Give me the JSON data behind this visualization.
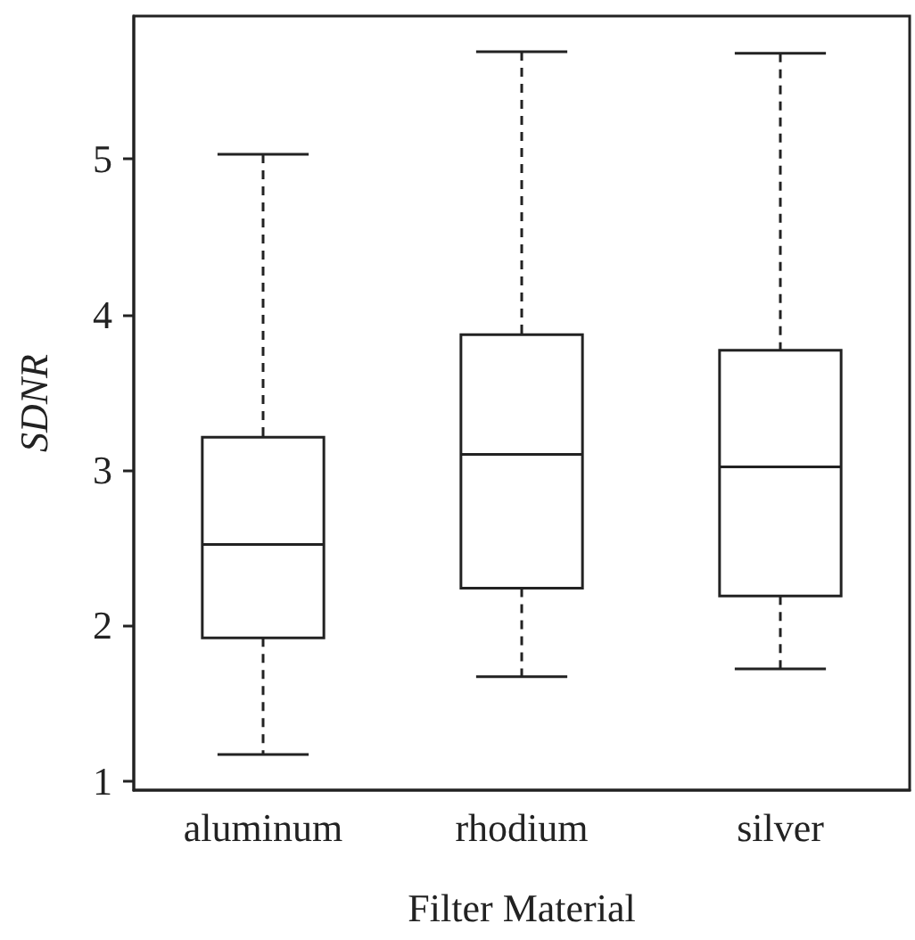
{
  "chart_data": {
    "type": "box",
    "xlabel": "Filter Material",
    "ylabel": "SDNR",
    "categories": [
      "aluminum",
      "rhodium",
      "silver"
    ],
    "boxes": [
      {
        "low": 1.17,
        "q1": 1.92,
        "median": 2.52,
        "q3": 3.21,
        "high": 5.03
      },
      {
        "low": 1.67,
        "q1": 2.24,
        "median": 3.1,
        "q3": 3.87,
        "high": 5.69
      },
      {
        "low": 1.72,
        "q1": 2.19,
        "median": 3.02,
        "q3": 3.77,
        "high": 5.68
      }
    ],
    "color": "#222222",
    "ylim": [
      0.94,
      5.92
    ],
    "yticks": [
      1,
      2,
      3,
      4,
      5
    ],
    "grid": false
  }
}
